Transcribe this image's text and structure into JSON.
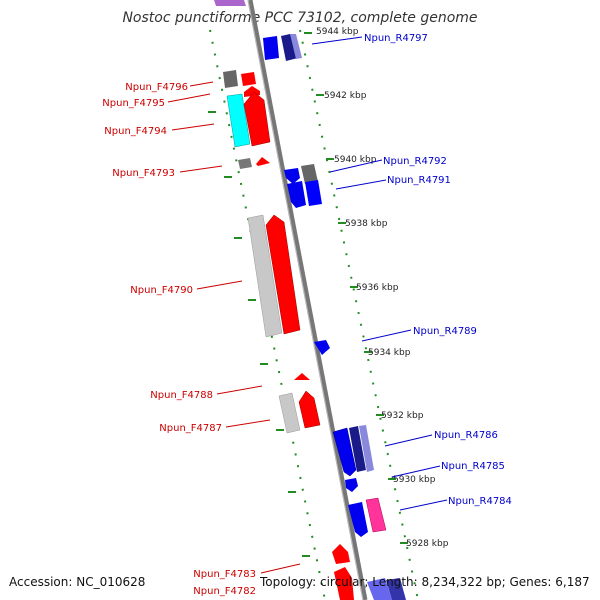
{
  "title": "Nostoc punctiforme PCC 73102, complete genome",
  "footer": {
    "accession": "Accession: NC_010628",
    "topology": "Topology: circular; Length: 8,234,322 bp; Genes: 6,187"
  },
  "colors": {
    "forward": "#ff0000",
    "reverse": "#0000ff",
    "forward_label": "#cc0000",
    "reverse_label": "#0000cc",
    "grey_gene": "#bbbbbb",
    "cyan_gene": "#00ffff",
    "magenta_gene": "#ff44aa",
    "track_dash": "#228b22",
    "backbone": "#888888"
  },
  "scale_labels": [
    "5944 kbp",
    "5942 kbp",
    "5940 kbp",
    "5938 kbp",
    "5936 kbp",
    "5934 kbp",
    "5932 kbp",
    "5930 kbp",
    "5928 kbp"
  ],
  "forward_labels": [
    "Npun_F4796",
    "Npun_F4795",
    "Npun_F4794",
    "Npun_F4793",
    "Npun_F4790",
    "Npun_F4788",
    "Npun_F4787",
    "Npun_F4783",
    "Npun_F4782"
  ],
  "reverse_labels": [
    "Npun_R4797",
    "Npun_R4792",
    "Npun_R4791",
    "Npun_R4789",
    "Npun_R4786",
    "Npun_R4785",
    "Npun_R4784"
  ]
}
